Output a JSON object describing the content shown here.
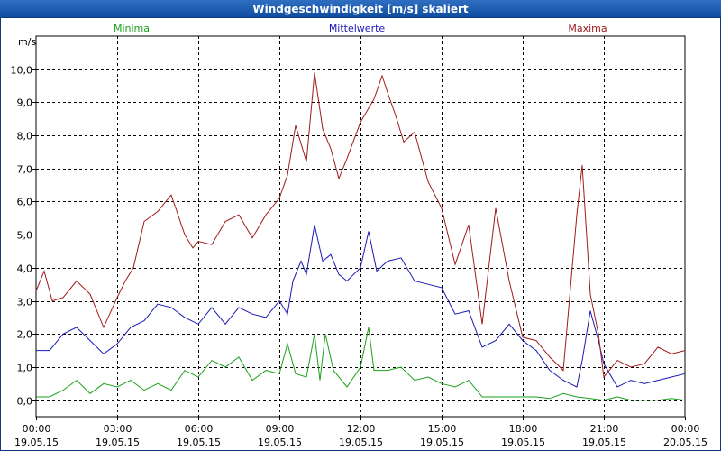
{
  "window": {
    "title": "Windgeschwindigkeit [m/s] skaliert"
  },
  "chart_data": {
    "type": "line",
    "title": "Windgeschwindigkeit [m/s] skaliert",
    "ylabel": "m/s",
    "xlim": [
      0,
      24
    ],
    "ylim": [
      -0.5,
      11
    ],
    "yticks": [
      0,
      1,
      2,
      3,
      4,
      5,
      6,
      7,
      8,
      9,
      10
    ],
    "ytick_labels": [
      "0,0",
      "1,0",
      "2,0",
      "3,0",
      "4,0",
      "5,0",
      "6,0",
      "7,0",
      "8,0",
      "9,0",
      "10,0"
    ],
    "xticks": [
      {
        "t": 0,
        "time": "00:00",
        "date": "19.05.15"
      },
      {
        "t": 3,
        "time": "03:00",
        "date": "19.05.15"
      },
      {
        "t": 6,
        "time": "06:00",
        "date": "19.05.15"
      },
      {
        "t": 9,
        "time": "09:00",
        "date": "19.05.15"
      },
      {
        "t": 12,
        "time": "12:00",
        "date": "19.05.15"
      },
      {
        "t": 15,
        "time": "15:00",
        "date": "19.05.15"
      },
      {
        "t": 18,
        "time": "18:00",
        "date": "19.05.15"
      },
      {
        "t": 21,
        "time": "21:00",
        "date": "19.05.15"
      },
      {
        "t": 24,
        "time": "00:00",
        "date": "20.05.15"
      }
    ],
    "grid": true,
    "series": [
      {
        "name": "Minima",
        "color": "#1aa01a",
        "points": [
          [
            0,
            0.1
          ],
          [
            0.5,
            0.1
          ],
          [
            1,
            0.3
          ],
          [
            1.5,
            0.6
          ],
          [
            2,
            0.2
          ],
          [
            2.5,
            0.5
          ],
          [
            3,
            0.4
          ],
          [
            3.5,
            0.6
          ],
          [
            4,
            0.3
          ],
          [
            4.5,
            0.5
          ],
          [
            5,
            0.3
          ],
          [
            5.5,
            0.9
          ],
          [
            6,
            0.7
          ],
          [
            6.5,
            1.2
          ],
          [
            7,
            1.0
          ],
          [
            7.5,
            1.3
          ],
          [
            8,
            0.6
          ],
          [
            8.5,
            0.9
          ],
          [
            9,
            0.8
          ],
          [
            9.3,
            1.7
          ],
          [
            9.6,
            0.8
          ],
          [
            10,
            0.7
          ],
          [
            10.3,
            2.0
          ],
          [
            10.5,
            0.6
          ],
          [
            10.7,
            2.0
          ],
          [
            11,
            0.9
          ],
          [
            11.5,
            0.4
          ],
          [
            12,
            1.0
          ],
          [
            12.3,
            2.2
          ],
          [
            12.5,
            0.9
          ],
          [
            13,
            0.9
          ],
          [
            13.5,
            1.0
          ],
          [
            14,
            0.6
          ],
          [
            14.5,
            0.7
          ],
          [
            15,
            0.5
          ],
          [
            15.5,
            0.4
          ],
          [
            16,
            0.6
          ],
          [
            16.5,
            0.1
          ],
          [
            17,
            0.1
          ],
          [
            17.5,
            0.1
          ],
          [
            18,
            0.1
          ],
          [
            18.5,
            0.1
          ],
          [
            19,
            0.05
          ],
          [
            19.5,
            0.2
          ],
          [
            20,
            0.1
          ],
          [
            20.5,
            0.05
          ],
          [
            21,
            0.0
          ],
          [
            21.5,
            0.1
          ],
          [
            22,
            0.0
          ],
          [
            22.5,
            0.0
          ],
          [
            23,
            0.0
          ],
          [
            23.5,
            0.05
          ],
          [
            24,
            0.0
          ]
        ]
      },
      {
        "name": "Mittelwerte",
        "color": "#1a1ab4",
        "points": [
          [
            0,
            1.5
          ],
          [
            0.5,
            1.5
          ],
          [
            1,
            2.0
          ],
          [
            1.5,
            2.2
          ],
          [
            2,
            1.8
          ],
          [
            2.5,
            1.4
          ],
          [
            3,
            1.7
          ],
          [
            3.5,
            2.2
          ],
          [
            4,
            2.4
          ],
          [
            4.5,
            2.9
          ],
          [
            5,
            2.8
          ],
          [
            5.5,
            2.5
          ],
          [
            6,
            2.3
          ],
          [
            6.5,
            2.8
          ],
          [
            7,
            2.3
          ],
          [
            7.5,
            2.8
          ],
          [
            8,
            2.6
          ],
          [
            8.5,
            2.5
          ],
          [
            9,
            3.0
          ],
          [
            9.3,
            2.6
          ],
          [
            9.5,
            3.6
          ],
          [
            9.8,
            4.2
          ],
          [
            10,
            3.8
          ],
          [
            10.3,
            5.3
          ],
          [
            10.6,
            4.2
          ],
          [
            10.9,
            4.4
          ],
          [
            11.2,
            3.8
          ],
          [
            11.5,
            3.6
          ],
          [
            12,
            4.0
          ],
          [
            12.3,
            5.1
          ],
          [
            12.6,
            3.9
          ],
          [
            13,
            4.2
          ],
          [
            13.5,
            4.3
          ],
          [
            14,
            3.6
          ],
          [
            14.5,
            3.5
          ],
          [
            15,
            3.4
          ],
          [
            15.5,
            2.6
          ],
          [
            16,
            2.7
          ],
          [
            16.5,
            1.6
          ],
          [
            17,
            1.8
          ],
          [
            17.5,
            2.3
          ],
          [
            18,
            1.8
          ],
          [
            18.5,
            1.5
          ],
          [
            19,
            0.9
          ],
          [
            19.5,
            0.6
          ],
          [
            20,
            0.4
          ],
          [
            20.2,
            1.2
          ],
          [
            20.5,
            2.7
          ],
          [
            20.8,
            1.8
          ],
          [
            21,
            1.1
          ],
          [
            21.5,
            0.4
          ],
          [
            22,
            0.6
          ],
          [
            22.5,
            0.5
          ],
          [
            23,
            0.6
          ],
          [
            23.5,
            0.7
          ],
          [
            24,
            0.8
          ]
        ]
      },
      {
        "name": "Maxima",
        "color": "#a01a1a",
        "points": [
          [
            0,
            3.3
          ],
          [
            0.3,
            3.9
          ],
          [
            0.6,
            3.0
          ],
          [
            1,
            3.1
          ],
          [
            1.5,
            3.6
          ],
          [
            2,
            3.2
          ],
          [
            2.5,
            2.2
          ],
          [
            3,
            3.1
          ],
          [
            3.3,
            3.6
          ],
          [
            3.6,
            4.0
          ],
          [
            4,
            5.4
          ],
          [
            4.5,
            5.7
          ],
          [
            5,
            6.2
          ],
          [
            5.5,
            5.0
          ],
          [
            5.8,
            4.6
          ],
          [
            6,
            4.8
          ],
          [
            6.5,
            4.7
          ],
          [
            7,
            5.4
          ],
          [
            7.5,
            5.6
          ],
          [
            8,
            4.9
          ],
          [
            8.5,
            5.6
          ],
          [
            9,
            6.1
          ],
          [
            9.3,
            6.8
          ],
          [
            9.6,
            8.3
          ],
          [
            10,
            7.2
          ],
          [
            10.3,
            9.9
          ],
          [
            10.6,
            8.2
          ],
          [
            10.9,
            7.6
          ],
          [
            11.2,
            6.7
          ],
          [
            11.5,
            7.3
          ],
          [
            12,
            8.4
          ],
          [
            12.5,
            9.1
          ],
          [
            12.8,
            9.8
          ],
          [
            13,
            9.3
          ],
          [
            13.3,
            8.6
          ],
          [
            13.6,
            7.8
          ],
          [
            14,
            8.1
          ],
          [
            14.5,
            6.6
          ],
          [
            15,
            5.8
          ],
          [
            15.5,
            4.1
          ],
          [
            16,
            5.3
          ],
          [
            16.5,
            2.3
          ],
          [
            17,
            5.8
          ],
          [
            17.5,
            3.6
          ],
          [
            18,
            1.9
          ],
          [
            18.5,
            1.8
          ],
          [
            19,
            1.3
          ],
          [
            19.5,
            0.9
          ],
          [
            20,
            5.6
          ],
          [
            20.2,
            7.1
          ],
          [
            20.5,
            3.2
          ],
          [
            20.8,
            2.0
          ],
          [
            21,
            0.7
          ],
          [
            21.5,
            1.2
          ],
          [
            22,
            1.0
          ],
          [
            22.5,
            1.1
          ],
          [
            23,
            1.6
          ],
          [
            23.5,
            1.4
          ],
          [
            24,
            1.5
          ]
        ]
      }
    ]
  }
}
